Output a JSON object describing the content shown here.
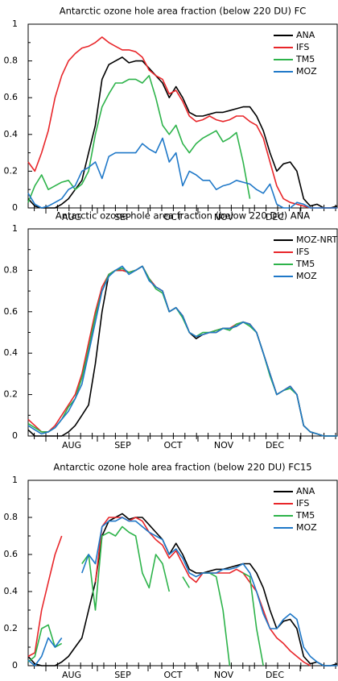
{
  "chart_data": [
    {
      "type": "line",
      "title": "Antarctic ozone hole area fraction (below 220 DU) FC",
      "x_labels": [
        "AUG",
        "SEP",
        "OCT",
        "NOV",
        "DEC"
      ],
      "ylim": [
        0,
        1
      ],
      "yticks": [
        0,
        0.2,
        0.4,
        0.6,
        0.8,
        1
      ],
      "legend": "upper right",
      "series": [
        {
          "name": "ANA",
          "color": "#000000",
          "values": [
            0.05,
            0.01,
            0,
            0,
            0,
            0.02,
            0.05,
            0.1,
            0.15,
            0.3,
            0.45,
            0.7,
            0.78,
            0.8,
            0.82,
            0.79,
            0.8,
            0.8,
            0.76,
            0.72,
            0.68,
            0.6,
            0.66,
            0.6,
            0.52,
            0.5,
            0.5,
            0.51,
            0.52,
            0.52,
            0.53,
            0.54,
            0.55,
            0.55,
            0.5,
            0.42,
            0.3,
            0.2,
            0.24,
            0.25,
            0.2,
            0.05,
            0.01,
            0.02,
            0,
            0,
            0.01
          ]
        },
        {
          "name": "IFS",
          "color": "#e8262a",
          "values": [
            0.25,
            0.2,
            0.3,
            0.42,
            0.6,
            0.72,
            0.8,
            0.84,
            0.87,
            0.88,
            0.9,
            0.93,
            0.9,
            0.88,
            0.86,
            0.86,
            0.85,
            0.82,
            0.75,
            0.72,
            0.7,
            0.62,
            0.64,
            0.58,
            0.5,
            0.47,
            0.48,
            0.5,
            0.48,
            0.47,
            0.48,
            0.5,
            0.5,
            0.47,
            0.45,
            0.38,
            0.25,
            0.12,
            0.05,
            0.03,
            0.02,
            0.01,
            0,
            0,
            0,
            0,
            0
          ]
        },
        {
          "name": "TM5",
          "color": "#2db34a",
          "values": [
            0.03,
            0.12,
            0.18,
            0.1,
            0.12,
            0.14,
            0.15,
            0.1,
            0.13,
            0.2,
            0.4,
            0.55,
            0.62,
            0.68,
            0.68,
            0.7,
            0.7,
            0.68,
            0.72,
            0.6,
            0.45,
            0.4,
            0.45,
            0.35,
            0.3,
            0.35,
            0.38,
            0.4,
            0.42,
            0.36,
            0.38,
            0.41,
            0.25,
            0.05,
            null,
            null,
            null,
            null,
            null,
            null,
            null,
            null,
            null,
            null,
            null,
            null,
            null
          ]
        },
        {
          "name": "MOZ",
          "color": "#1f78c8",
          "values": [
            0.08,
            0.02,
            0,
            0.01,
            0.03,
            0.05,
            0.1,
            0.12,
            0.2,
            0.22,
            0.25,
            0.16,
            0.28,
            0.3,
            0.3,
            0.3,
            0.3,
            0.35,
            0.32,
            0.3,
            0.38,
            0.25,
            0.3,
            0.12,
            0.2,
            0.18,
            0.15,
            0.15,
            0.1,
            0.12,
            0.13,
            0.15,
            0.14,
            0.13,
            0.1,
            0.08,
            0.13,
            0.02,
            0,
            0,
            0.03,
            0.02,
            0,
            0,
            0,
            0,
            0
          ]
        }
      ]
    },
    {
      "type": "line",
      "title": "Antarctic ozone hole area fraction (below 220 DU) ANA",
      "x_labels": [
        "AUG",
        "SEP",
        "OCT",
        "NOV",
        "DEC"
      ],
      "ylim": [
        0,
        1
      ],
      "yticks": [
        0,
        0.2,
        0.4,
        0.6,
        0.8,
        1
      ],
      "legend": "upper right",
      "series": [
        {
          "name": "MOZ-NRT",
          "color": "#000000",
          "values": [
            0.03,
            0,
            0,
            0,
            0,
            0,
            0.02,
            0.05,
            0.1,
            0.15,
            0.35,
            0.6,
            0.78,
            0.8,
            0.8,
            0.79,
            0.8,
            0.82,
            0.76,
            0.72,
            0.7,
            0.6,
            0.62,
            0.58,
            0.5,
            0.47,
            0.49,
            0.5,
            0.5,
            0.52,
            0.52,
            0.53,
            0.55,
            0.54,
            0.5,
            0.4,
            0.3,
            0.2,
            0.22,
            0.24,
            0.2,
            0.05,
            0.02,
            0.01,
            0,
            0,
            0
          ]
        },
        {
          "name": "IFS",
          "color": "#e8262a",
          "values": [
            0.08,
            0.05,
            0.02,
            0.02,
            0.05,
            0.1,
            0.15,
            0.2,
            0.3,
            0.45,
            0.6,
            0.72,
            0.78,
            0.8,
            0.8,
            0.79,
            0.8,
            0.82,
            0.76,
            0.72,
            0.7,
            0.6,
            0.62,
            0.58,
            0.5,
            0.48,
            0.49,
            0.5,
            0.51,
            0.52,
            0.52,
            0.54,
            0.55,
            0.54,
            0.5,
            0.4,
            0.3,
            0.2,
            0.22,
            0.24,
            0.2,
            0.05,
            0.02,
            0.01,
            0,
            0,
            0
          ]
        },
        {
          "name": "TM5",
          "color": "#2db34a",
          "values": [
            0.06,
            0.04,
            0.02,
            0.02,
            0.04,
            0.08,
            0.14,
            0.18,
            0.28,
            0.42,
            0.58,
            0.7,
            0.78,
            0.8,
            0.81,
            0.79,
            0.8,
            0.82,
            0.76,
            0.71,
            0.69,
            0.6,
            0.62,
            0.57,
            0.5,
            0.48,
            0.5,
            0.5,
            0.51,
            0.52,
            0.51,
            0.54,
            0.55,
            0.53,
            0.5,
            0.4,
            0.29,
            0.2,
            0.22,
            0.23,
            0.2,
            0.05,
            0.02,
            0.01,
            0,
            0,
            0
          ]
        },
        {
          "name": "MOZ",
          "color": "#1f78c8",
          "values": [
            0.05,
            0.03,
            0.01,
            0.02,
            0.04,
            0.08,
            0.12,
            0.18,
            0.25,
            0.4,
            0.55,
            0.7,
            0.77,
            0.8,
            0.82,
            0.78,
            0.8,
            0.82,
            0.75,
            0.72,
            0.7,
            0.6,
            0.62,
            0.58,
            0.5,
            0.48,
            0.49,
            0.5,
            0.5,
            0.52,
            0.52,
            0.53,
            0.55,
            0.54,
            0.5,
            0.4,
            0.3,
            0.2,
            0.22,
            0.24,
            0.2,
            0.05,
            0.02,
            0.01,
            0,
            0,
            0
          ]
        }
      ]
    },
    {
      "type": "line",
      "title": "Antarctic ozone hole area fraction (below 220 DU) FC15",
      "x_labels": [
        "AUG",
        "SEP",
        "OCT",
        "NOV",
        "DEC"
      ],
      "ylim": [
        0,
        1
      ],
      "yticks": [
        0,
        0.2,
        0.4,
        0.6,
        0.8,
        1
      ],
      "legend": "upper right",
      "series": [
        {
          "name": "ANA",
          "color": "#000000",
          "values": [
            0.05,
            0.01,
            0,
            0,
            0,
            0.02,
            0.05,
            0.1,
            0.15,
            0.3,
            0.45,
            0.7,
            0.78,
            0.8,
            0.82,
            0.79,
            0.8,
            0.8,
            0.76,
            0.72,
            0.68,
            0.6,
            0.66,
            0.6,
            0.52,
            0.5,
            0.5,
            0.51,
            0.52,
            0.52,
            0.53,
            0.54,
            0.55,
            0.55,
            0.5,
            0.42,
            0.3,
            0.2,
            0.24,
            0.25,
            0.2,
            0.05,
            0.01,
            0.02,
            0,
            0,
            0.01
          ]
        },
        {
          "name": "IFS",
          "color": "#e8262a",
          "values": [
            0.05,
            0.07,
            0.3,
            0.45,
            0.6,
            0.7,
            null,
            null,
            null,
            null,
            0.45,
            0.75,
            0.8,
            0.8,
            0.8,
            0.78,
            0.8,
            0.78,
            0.72,
            0.68,
            0.65,
            0.58,
            0.62,
            0.55,
            0.48,
            0.45,
            0.5,
            0.5,
            0.5,
            0.5,
            0.5,
            0.52,
            0.5,
            0.45,
            0.4,
            0.3,
            0.2,
            0.15,
            0.12,
            0.08,
            0.05,
            0.02,
            0,
            null,
            null,
            null,
            null
          ]
        },
        {
          "name": "TM5",
          "color": "#2db34a",
          "values": [
            0.02,
            0.05,
            0.2,
            0.22,
            0.1,
            0.12,
            null,
            null,
            0.55,
            0.6,
            0.3,
            0.7,
            0.72,
            0.7,
            0.75,
            0.72,
            0.7,
            0.5,
            0.42,
            0.6,
            0.55,
            0.4,
            null,
            0.48,
            0.42,
            null,
            0.5,
            0.5,
            0.48,
            0.3,
            0,
            null,
            0.5,
            0.48,
            0.2,
            0,
            null,
            null,
            null,
            null,
            null,
            null,
            null,
            null,
            null,
            null,
            null
          ]
        },
        {
          "name": "MOZ",
          "color": "#1f78c8",
          "values": [
            0.03,
            0,
            0.05,
            0.15,
            0.1,
            0.15,
            null,
            null,
            0.5,
            0.6,
            0.55,
            0.75,
            0.78,
            0.78,
            0.8,
            0.78,
            0.78,
            0.75,
            0.72,
            0.7,
            0.68,
            0.6,
            0.63,
            0.58,
            0.5,
            0.48,
            0.5,
            0.5,
            0.5,
            0.52,
            0.52,
            0.53,
            0.55,
            0.5,
            0.4,
            0.28,
            0.2,
            0.2,
            0.25,
            0.28,
            0.25,
            0.1,
            0.05,
            0.02,
            0,
            0,
            0
          ]
        }
      ]
    }
  ]
}
